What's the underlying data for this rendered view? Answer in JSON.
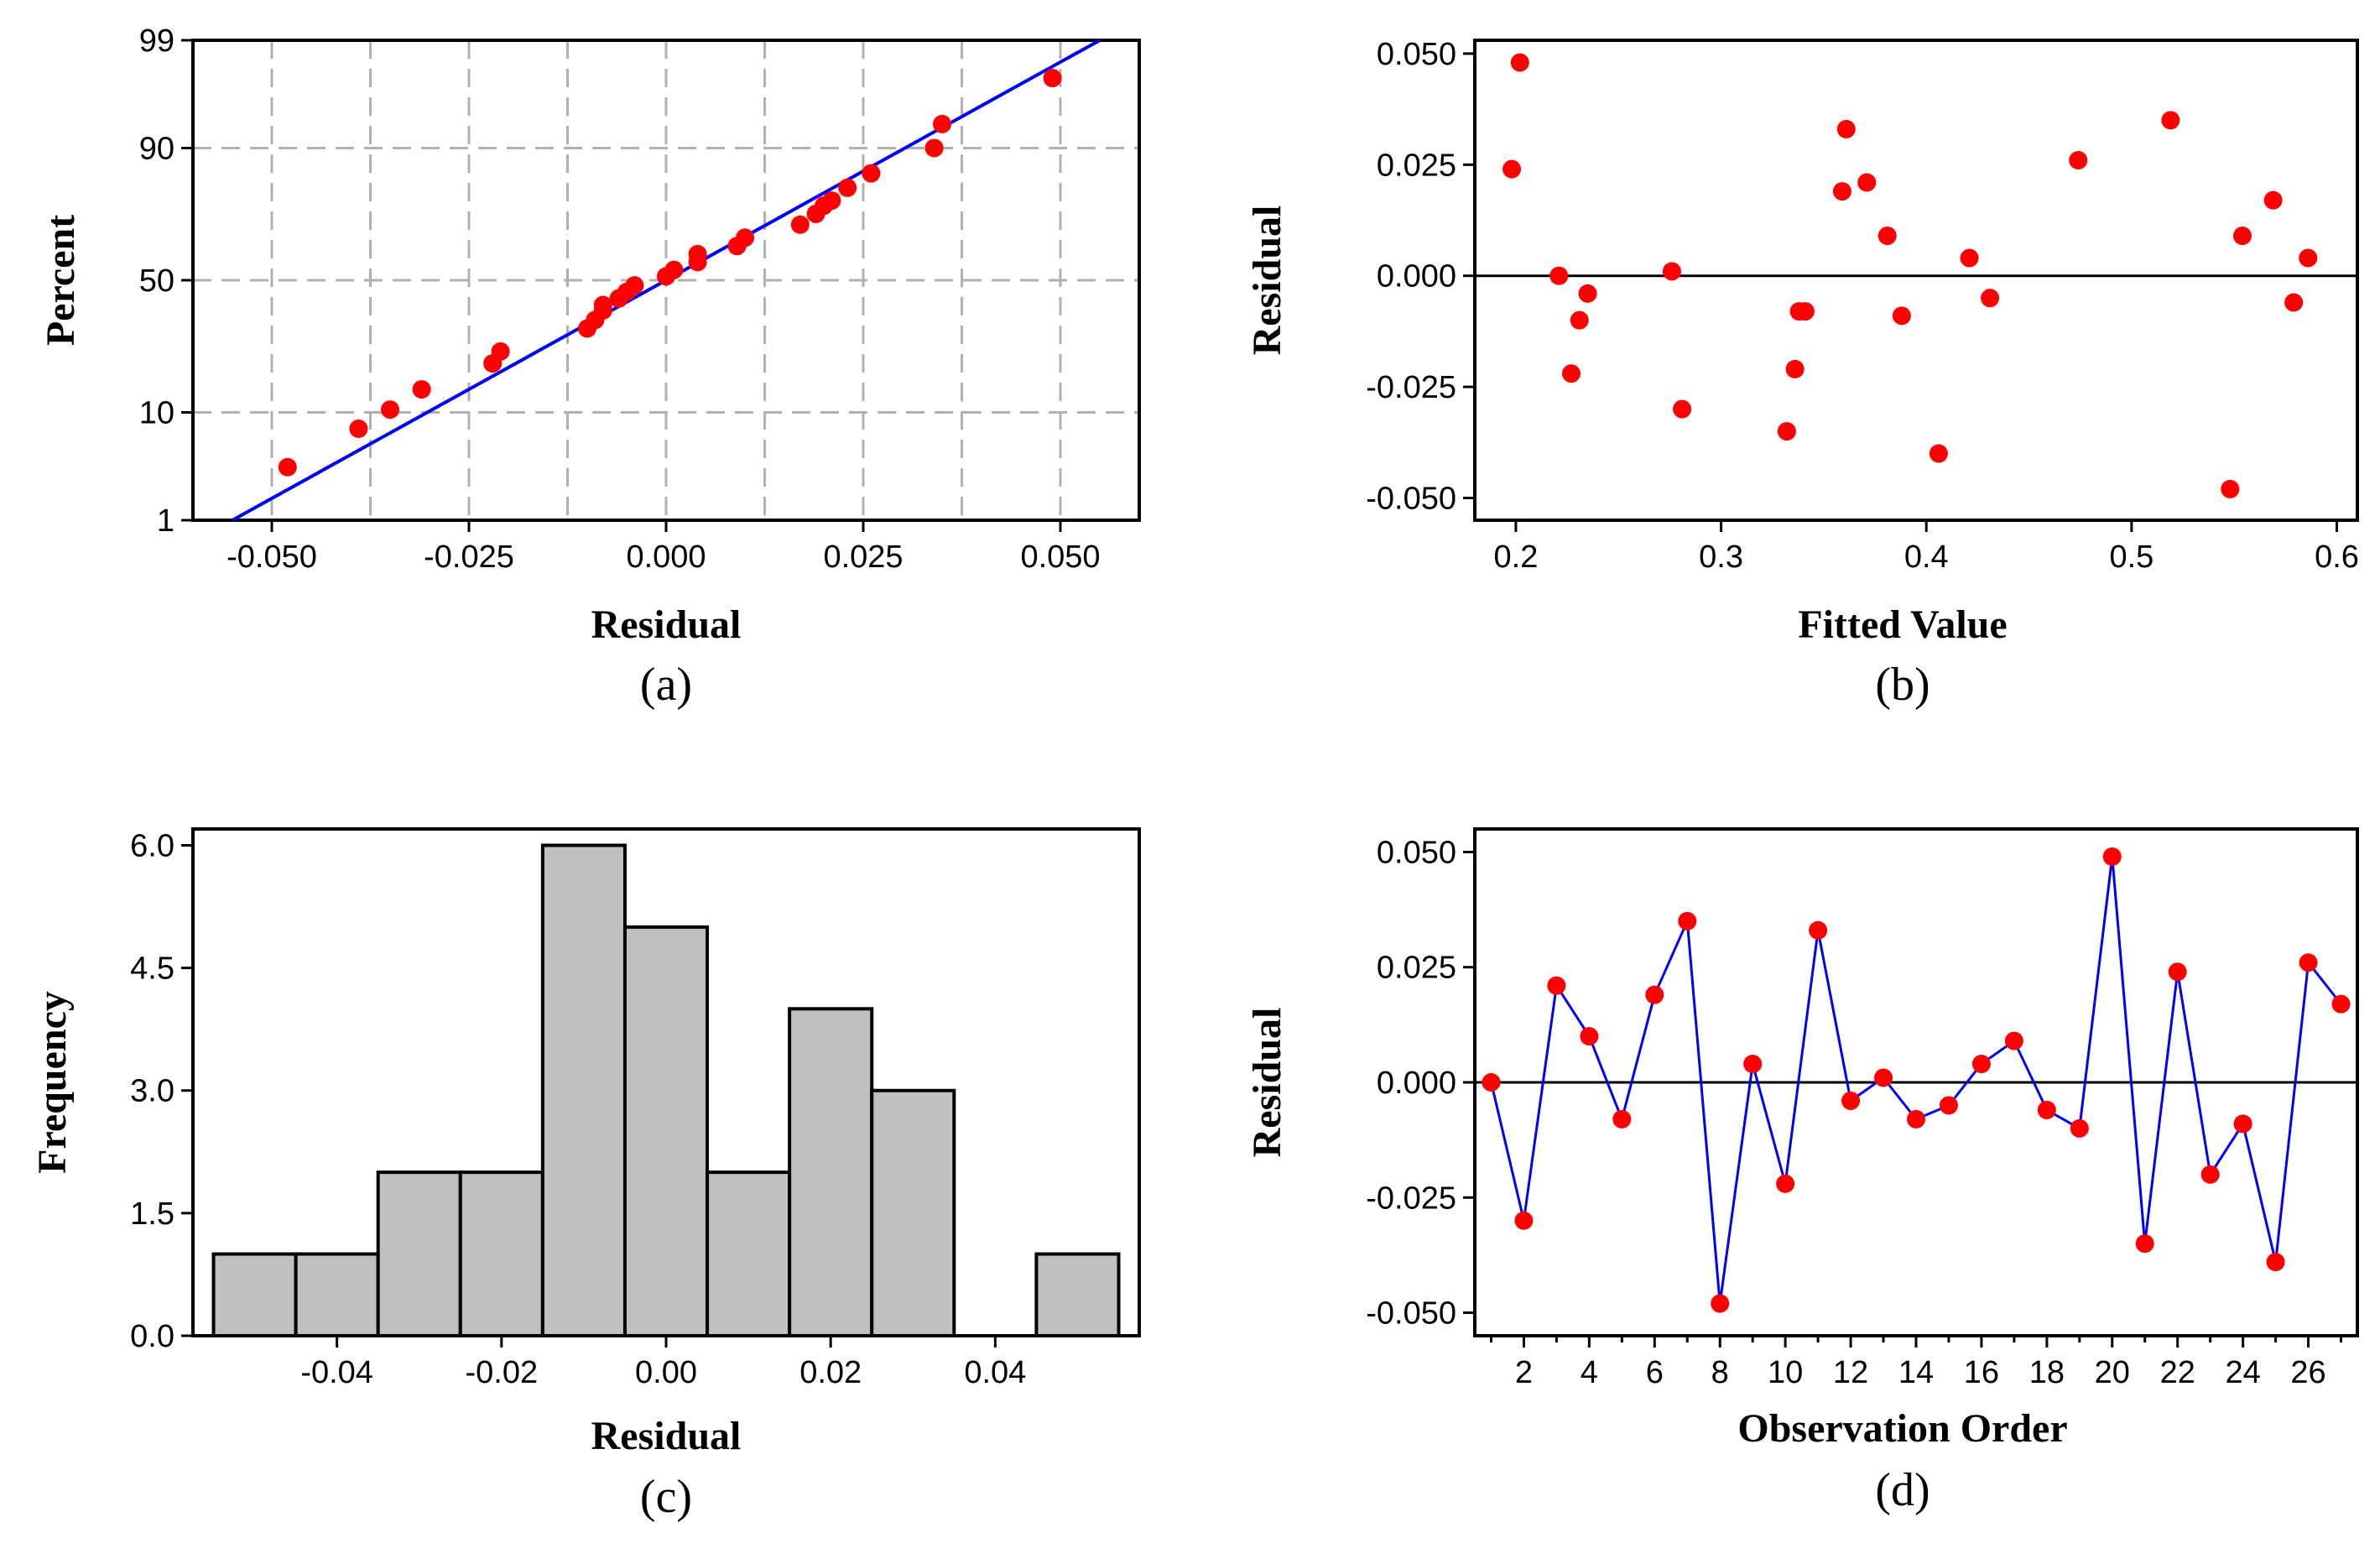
{
  "colors": {
    "points": "#ff0000",
    "line": "#0000ff",
    "bar_fill": "#c0c0c0",
    "grid": "#b0b0b0",
    "axis": "#000000"
  },
  "chart_data": [
    {
      "id": "a",
      "type": "scatter",
      "title": "",
      "caption": "(a)",
      "xlabel": "Residual",
      "ylabel": "Percent",
      "xlim": [
        -0.06,
        0.06
      ],
      "ylim": [
        1,
        99
      ],
      "grid": true,
      "xticks": [
        -0.05,
        -0.025,
        0.0,
        0.025,
        0.05
      ],
      "xtick_labels": [
        "-0.050",
        "-0.025",
        "0.000",
        "0.025",
        "0.050"
      ],
      "yticks": [
        1,
        10,
        50,
        90,
        99
      ],
      "ytick_labels": [
        "1",
        "10",
        "50",
        "90",
        "99"
      ],
      "fit_line": {
        "x": [
          -0.055,
          0.055
        ],
        "percent": [
          1,
          99
        ]
      },
      "points": [
        {
          "x": -0.048,
          "percent": 3.5
        },
        {
          "x": -0.039,
          "percent": 7.5
        },
        {
          "x": -0.035,
          "percent": 10.5
        },
        {
          "x": -0.031,
          "percent": 14.5
        },
        {
          "x": -0.022,
          "percent": 21
        },
        {
          "x": -0.021,
          "percent": 24.5
        },
        {
          "x": -0.01,
          "percent": 32
        },
        {
          "x": -0.009,
          "percent": 35
        },
        {
          "x": -0.008,
          "percent": 38.5
        },
        {
          "x": -0.008,
          "percent": 40.5
        },
        {
          "x": -0.006,
          "percent": 43
        },
        {
          "x": -0.005,
          "percent": 45.5
        },
        {
          "x": -0.004,
          "percent": 48
        },
        {
          "x": 0.0,
          "percent": 51.5
        },
        {
          "x": 0.001,
          "percent": 54
        },
        {
          "x": 0.004,
          "percent": 57
        },
        {
          "x": 0.004,
          "percent": 60
        },
        {
          "x": 0.009,
          "percent": 63
        },
        {
          "x": 0.01,
          "percent": 66
        },
        {
          "x": 0.017,
          "percent": 70.5
        },
        {
          "x": 0.019,
          "percent": 74
        },
        {
          "x": 0.02,
          "percent": 76.5
        },
        {
          "x": 0.021,
          "percent": 78
        },
        {
          "x": 0.023,
          "percent": 81.5
        },
        {
          "x": 0.026,
          "percent": 85
        },
        {
          "x": 0.034,
          "percent": 90
        },
        {
          "x": 0.035,
          "percent": 93.5
        },
        {
          "x": 0.049,
          "percent": 97.5
        }
      ]
    },
    {
      "id": "b",
      "type": "scatter",
      "title": "",
      "caption": "(b)",
      "xlabel": "Fitted Value",
      "ylabel": "Residual",
      "xlim": [
        0.18,
        0.61
      ],
      "ylim": [
        -0.055,
        0.053
      ],
      "xticks": [
        0.2,
        0.3,
        0.4,
        0.5,
        0.6
      ],
      "xtick_labels": [
        "0.2",
        "0.3",
        "0.4",
        "0.5",
        "0.6"
      ],
      "yticks": [
        -0.05,
        -0.025,
        0.0,
        0.025,
        0.05
      ],
      "ytick_labels": [
        "-0.050",
        "-0.025",
        "0.000",
        "0.025",
        "0.050"
      ],
      "reference_y": 0,
      "points": [
        {
          "x": 0.198,
          "y": 0.024
        },
        {
          "x": 0.202,
          "y": 0.048
        },
        {
          "x": 0.221,
          "y": 0.0
        },
        {
          "x": 0.227,
          "y": -0.022
        },
        {
          "x": 0.231,
          "y": -0.01
        },
        {
          "x": 0.235,
          "y": -0.004
        },
        {
          "x": 0.276,
          "y": 0.001
        },
        {
          "x": 0.281,
          "y": -0.03
        },
        {
          "x": 0.332,
          "y": -0.035
        },
        {
          "x": 0.336,
          "y": -0.021
        },
        {
          "x": 0.338,
          "y": -0.008
        },
        {
          "x": 0.341,
          "y": -0.008
        },
        {
          "x": 0.359,
          "y": 0.019
        },
        {
          "x": 0.361,
          "y": 0.033
        },
        {
          "x": 0.371,
          "y": 0.021
        },
        {
          "x": 0.381,
          "y": 0.009
        },
        {
          "x": 0.388,
          "y": -0.009
        },
        {
          "x": 0.406,
          "y": -0.04
        },
        {
          "x": 0.421,
          "y": 0.004
        },
        {
          "x": 0.431,
          "y": -0.005
        },
        {
          "x": 0.474,
          "y": 0.026
        },
        {
          "x": 0.519,
          "y": 0.035
        },
        {
          "x": 0.548,
          "y": -0.048
        },
        {
          "x": 0.554,
          "y": 0.009
        },
        {
          "x": 0.569,
          "y": 0.017
        },
        {
          "x": 0.579,
          "y": -0.006
        },
        {
          "x": 0.586,
          "y": 0.004
        }
      ]
    },
    {
      "id": "c",
      "type": "bar",
      "title": "",
      "caption": "(c)",
      "xlabel": "Residual",
      "ylabel": "Frequency",
      "xlim": [
        -0.0575,
        0.0575
      ],
      "ylim": [
        0,
        6.2
      ],
      "bin_width": 0.01,
      "bin_centers": [
        -0.05,
        -0.04,
        -0.03,
        -0.02,
        -0.01,
        0.0,
        0.01,
        0.02,
        0.03,
        0.04,
        0.05
      ],
      "values": [
        1,
        1,
        2,
        2,
        6,
        5,
        2,
        4,
        3,
        0,
        1
      ],
      "xticks": [
        -0.04,
        -0.02,
        0.0,
        0.02,
        0.04
      ],
      "xtick_labels": [
        "-0.04",
        "-0.02",
        "0.00",
        "0.02",
        "0.04"
      ],
      "yticks": [
        0,
        1.5,
        3.0,
        4.5,
        6.0
      ],
      "ytick_labels": [
        "0.0",
        "1.5",
        "3.0",
        "4.5",
        "6.0"
      ]
    },
    {
      "id": "d",
      "type": "line",
      "title": "",
      "caption": "(d)",
      "xlabel": "Observation Order",
      "ylabel": "Residual",
      "xlim": [
        0.5,
        27.5
      ],
      "ylim": [
        -0.055,
        0.055
      ],
      "xticks": [
        2,
        4,
        6,
        8,
        10,
        12,
        14,
        16,
        18,
        20,
        22,
        24,
        26
      ],
      "xtick_labels": [
        "2",
        "4",
        "6",
        "8",
        "10",
        "12",
        "14",
        "16",
        "18",
        "20",
        "22",
        "24",
        "26"
      ],
      "yticks": [
        -0.05,
        -0.025,
        0.0,
        0.025,
        0.05
      ],
      "ytick_labels": [
        "-0.050",
        "-0.025",
        "0.000",
        "0.025",
        "0.050"
      ],
      "reference_y": 0,
      "x": [
        1,
        2,
        3,
        4,
        5,
        6,
        7,
        8,
        9,
        10,
        11,
        12,
        13,
        14,
        15,
        16,
        17,
        18,
        19,
        20,
        21,
        22,
        23,
        24,
        25,
        26,
        27
      ],
      "y": [
        0.0,
        -0.03,
        0.021,
        0.01,
        -0.008,
        0.019,
        0.035,
        -0.048,
        0.004,
        -0.022,
        0.033,
        -0.004,
        0.001,
        -0.008,
        -0.005,
        0.004,
        0.009,
        -0.006,
        -0.01,
        0.049,
        -0.035,
        0.024,
        -0.02,
        -0.009,
        -0.039,
        0.026,
        0.017
      ]
    }
  ]
}
